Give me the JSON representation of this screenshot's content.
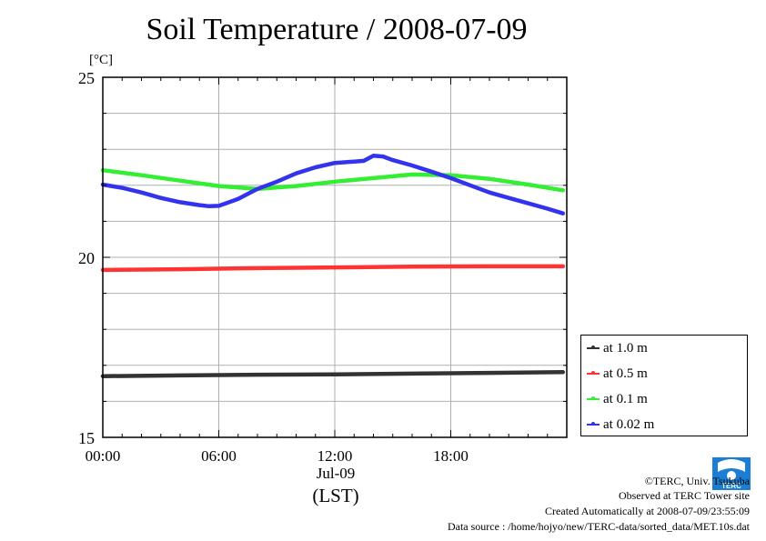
{
  "chart_data": {
    "type": "line",
    "title": "Soil Temperature / 2008-07-09",
    "ylabel": "[°C]",
    "xlabel": "(LST)",
    "x_sublabel": "Jul-09",
    "x_ticks": [
      "00:00",
      "06:00",
      "12:00",
      "18:00"
    ],
    "xlim": [
      0,
      24
    ],
    "ylim": [
      15,
      25
    ],
    "y_ticks": [
      "15",
      "20",
      "25"
    ],
    "grid": true,
    "legend_position": "lower-right-outside",
    "series": [
      {
        "name": "at 1.0 m",
        "color": "#333333",
        "x": [
          0,
          4,
          8,
          12,
          16,
          20,
          23.8
        ],
        "y": [
          16.7,
          16.72,
          16.74,
          16.75,
          16.77,
          16.79,
          16.81
        ]
      },
      {
        "name": "at 0.5 m",
        "color": "#ff3333",
        "x": [
          0,
          4,
          8,
          12,
          16,
          20,
          23.8
        ],
        "y": [
          19.65,
          19.67,
          19.7,
          19.72,
          19.74,
          19.75,
          19.75
        ]
      },
      {
        "name": "at 0.1 m",
        "color": "#33ee33",
        "x": [
          0,
          2,
          4,
          6,
          8,
          10,
          12,
          14,
          16,
          18,
          20,
          22,
          23.8
        ],
        "y": [
          22.42,
          22.28,
          22.13,
          21.98,
          21.9,
          21.98,
          22.1,
          22.2,
          22.3,
          22.28,
          22.18,
          22.02,
          21.86
        ]
      },
      {
        "name": "at 0.02 m",
        "color": "#3333ee",
        "x": [
          0,
          1,
          2,
          3,
          4,
          5,
          5.5,
          6,
          7,
          8,
          9,
          10,
          11,
          12,
          13,
          13.5,
          14,
          14.5,
          15,
          16,
          17,
          18,
          19,
          20,
          21,
          22,
          23,
          23.8
        ],
        "y": [
          22.02,
          21.93,
          21.8,
          21.65,
          21.53,
          21.45,
          21.42,
          21.43,
          21.62,
          21.9,
          22.1,
          22.33,
          22.5,
          22.62,
          22.66,
          22.68,
          22.82,
          22.8,
          22.7,
          22.55,
          22.38,
          22.2,
          22.0,
          21.8,
          21.65,
          21.5,
          21.35,
          21.22
        ]
      }
    ]
  },
  "credits": {
    "copyright": "©TERC, Univ. Tsukuba",
    "site": "Observed at TERC Tower site",
    "created": "Created Automatically at 2008-07-09/23:55:09",
    "source": "Data source : /home/hojyo/new/TERC-data/sorted_data/MET.10s.dat"
  },
  "logo": {
    "text": "TERC",
    "color": "#1a7fd4"
  }
}
